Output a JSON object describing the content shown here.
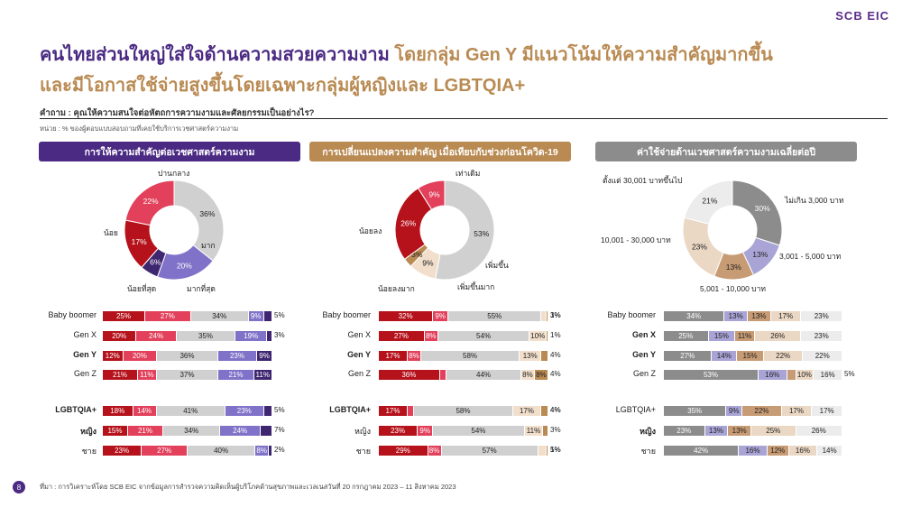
{
  "brand": {
    "logo": "SCB EIC"
  },
  "title": {
    "line1_main": "คนไทยส่วนใหญ่ใส่ใจด้านความสวยความงาม",
    "line1_sub": " โดยกลุ่ม Gen Y มีแนวโน้มให้ความสำคัญมากขึ้น",
    "line2": "และมีโอกาสใช้จ่ายสูงขึ้นโดยเฉพาะกลุ่มผู้หญิงและ LGBTQIA+"
  },
  "question": "คำถาม : คุณให้ความสนใจต่อหัตถการความงามและศัลยกรรมเป็นอย่างไร?",
  "unit_note": "หน่วย : % ของผู้ตอบแบบสอบถามที่เคยใช้บริการเวชศาสตร์ความงาม",
  "footer": "ที่มา : การวิเคราะห์โดย SCB EIC จากข้อมูลการสำรวจความคิดเห็นผู้บริโภคด้านสุขภาพและเวลเนสวันที่ 20 กรกฎาคม 2023 – 11 สิงหาคม 2023",
  "page_number": "8",
  "colors": {
    "purple_header": "#4b2a83",
    "tan_header": "#b98a52",
    "grey_header": "#8c8c8c"
  },
  "chart_data": [
    {
      "type": "donut+stacked_bar",
      "title": "การให้ความสำคัญต่อเวชศาสตร์ความงาม",
      "categories": [
        "น้อยที่สุด",
        "น้อย",
        "ปานกลาง",
        "มาก",
        "มากที่สุด"
      ],
      "colors": [
        "#b5121b",
        "#e2405b",
        "#d0d0d0",
        "#7f72c8",
        "#3f2670"
      ],
      "donut_values": [
        17,
        22,
        36,
        20,
        6
      ],
      "rows": [
        {
          "label": "Baby boomer",
          "bold": false,
          "values": [
            25,
            27,
            34,
            9,
            5
          ],
          "shown": [
            "25%",
            "27%",
            "34%",
            "9%",
            "5%"
          ]
        },
        {
          "label": "Gen X",
          "bold": false,
          "values": [
            20,
            24,
            35,
            19,
            3
          ],
          "shown": [
            "20%",
            "24%",
            "35%",
            "19%",
            "3%"
          ]
        },
        {
          "label": "Gen Y",
          "bold": true,
          "values": [
            12,
            20,
            36,
            23,
            9
          ],
          "shown": [
            "12%",
            "20%",
            "36%",
            "23%",
            "9%"
          ]
        },
        {
          "label": "Gen Z",
          "bold": false,
          "values": [
            21,
            11,
            37,
            21,
            11
          ],
          "shown": [
            "21%",
            "11%",
            "37%",
            "21%",
            "11%"
          ]
        },
        {
          "label": "LGBTQIA+",
          "bold": true,
          "values": [
            18,
            14,
            41,
            23,
            5
          ],
          "shown": [
            "18%",
            "14%",
            "41%",
            "23%",
            "5%"
          ]
        },
        {
          "label": "หญิง",
          "bold": true,
          "values": [
            15,
            21,
            34,
            24,
            7
          ],
          "shown": [
            "15%",
            "21%",
            "34%",
            "24%",
            "7%"
          ]
        },
        {
          "label": "ชาย",
          "bold": false,
          "values": [
            23,
            27,
            40,
            8,
            2
          ],
          "shown": [
            "23%",
            "27%",
            "40%",
            "8%",
            "2%"
          ]
        }
      ]
    },
    {
      "type": "donut+stacked_bar",
      "title": "การเปลี่ยนแปลงความสำคัญ เมื่อเทียบกับช่วงก่อนโควิด-19",
      "categories": [
        "น้อยลงมาก",
        "น้อยลง",
        "เท่าเดิม",
        "เพิ่มขึ้น",
        "เพิ่มขึ้นมาก"
      ],
      "colors": [
        "#b5121b",
        "#e2405b",
        "#d0d0d0",
        "#f1dfcc",
        "#b98a52"
      ],
      "donut_values": [
        26,
        9,
        53,
        9,
        3
      ],
      "rows": [
        {
          "label": "Baby boomer",
          "bold": false,
          "values": [
            32,
            9,
            55,
            3,
            1
          ],
          "shown": [
            "32%",
            "9%",
            "55%",
            "3%",
            "1%"
          ]
        },
        {
          "label": "Gen X",
          "bold": false,
          "values": [
            27,
            8,
            54,
            10,
            1
          ],
          "shown": [
            "27%",
            "8%",
            "54%",
            "10%",
            "1%"
          ]
        },
        {
          "label": "Gen Y",
          "bold": true,
          "values": [
            17,
            8,
            58,
            13,
            4
          ],
          "shown": [
            "17%",
            "8%",
            "58%",
            "13%",
            "4%"
          ]
        },
        {
          "label": "Gen Z",
          "bold": false,
          "values": [
            36,
            4,
            44,
            8,
            8
          ],
          "shown": [
            "36%",
            "4%",
            "44%",
            "8%",
            "8%"
          ]
        },
        {
          "label": "LGBTQIA+",
          "bold": true,
          "values": [
            17,
            4,
            58,
            17,
            4
          ],
          "shown": [
            "17%",
            "4%",
            "58%",
            "17%",
            "4%"
          ]
        },
        {
          "label": "หญิง",
          "bold": false,
          "values": [
            23,
            9,
            54,
            11,
            3
          ],
          "shown": [
            "23%",
            "9%",
            "54%",
            "11%",
            "3%"
          ]
        },
        {
          "label": "ชาย",
          "bold": false,
          "values": [
            29,
            8,
            57,
            5,
            1
          ],
          "shown": [
            "29%",
            "8%",
            "57%",
            "5%",
            "1%"
          ]
        }
      ]
    },
    {
      "type": "donut+stacked_bar",
      "title": "ค่าใช้จ่ายด้านเวชศาสตร์ความงามเฉลี่ยต่อปี",
      "categories": [
        "ไม่เกิน 3,000 บาท",
        "3,001 - 5,000 บาท",
        "5,001 - 10,000 บาท",
        "10,001 - 30,000 บาท",
        "ตั้งแต่ 30,001 บาทขึ้นไป"
      ],
      "colors": [
        "#8c8c8c",
        "#a9a4d6",
        "#c79b74",
        "#ead7c4",
        "#ececec"
      ],
      "donut_values": [
        30,
        13,
        13,
        23,
        21
      ],
      "rows": [
        {
          "label": "Baby boomer",
          "bold": false,
          "values": [
            34,
            13,
            13,
            17,
            23
          ],
          "shown": [
            "34%",
            "13%",
            "13%",
            "17%",
            "23%"
          ]
        },
        {
          "label": "Gen X",
          "bold": true,
          "values": [
            25,
            15,
            11,
            26,
            23
          ],
          "shown": [
            "25%",
            "15%",
            "11%",
            "26%",
            "23%"
          ]
        },
        {
          "label": "Gen Y",
          "bold": true,
          "values": [
            27,
            14,
            15,
            22,
            22
          ],
          "shown": [
            "27%",
            "14%",
            "15%",
            "22%",
            "22%"
          ]
        },
        {
          "label": "Gen Z",
          "bold": false,
          "values": [
            53,
            16,
            5,
            10,
            16
          ],
          "shown": [
            "53%",
            "16%",
            "5%",
            "10%",
            "16%"
          ]
        },
        {
          "label": "LGBTQIA+",
          "bold": false,
          "values": [
            35,
            9,
            22,
            17,
            17
          ],
          "shown": [
            "35%",
            "9%",
            "22%",
            "17%",
            "17%"
          ]
        },
        {
          "label": "หญิง",
          "bold": true,
          "values": [
            23,
            13,
            13,
            25,
            26
          ],
          "shown": [
            "23%",
            "13%",
            "13%",
            "25%",
            "26%"
          ]
        },
        {
          "label": "ชาย",
          "bold": false,
          "values": [
            42,
            16,
            12,
            16,
            14
          ],
          "shown": [
            "42%",
            "16%",
            "12%",
            "16%",
            "14%"
          ]
        }
      ]
    }
  ]
}
